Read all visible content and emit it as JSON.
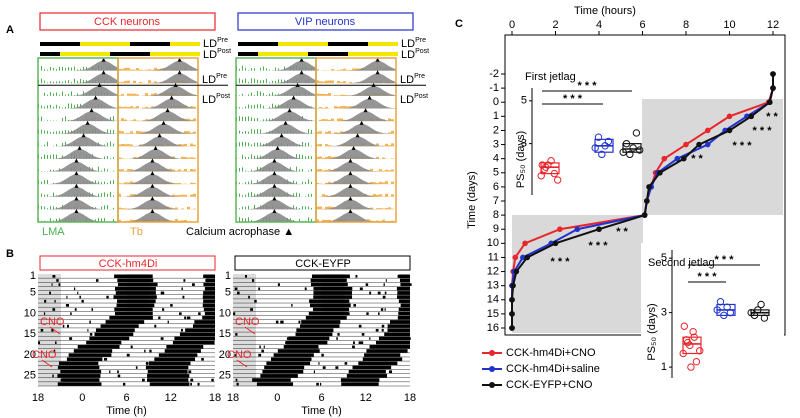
{
  "panel_a": {
    "label": "A",
    "groups": [
      "CCK neurons",
      "VIP neurons"
    ],
    "ld_labels": [
      {
        "text": "LD",
        "sup": "Pre"
      },
      {
        "text": "LD",
        "sup": "Post"
      }
    ],
    "traces": [
      "LMA",
      "Tb"
    ],
    "marker_label": "Calcium acrophase ▲"
  },
  "panel_b": {
    "label": "B",
    "titles": [
      "CCK-hm4Di",
      "CCK-EYFP"
    ],
    "y_ticks": [
      "1",
      "5",
      "10",
      "15",
      "20",
      "25"
    ],
    "x_ticks": [
      "18",
      "0",
      "6",
      "12",
      "18"
    ],
    "x_label": "Time (h)",
    "annotation": "CNO"
  },
  "chart_data": [
    {
      "type": "line",
      "label": "C",
      "x_label": "Time (hours)",
      "y_label": "Time (days)",
      "days": [
        -2,
        -1,
        0,
        1,
        2,
        3,
        4,
        5,
        6,
        7,
        8,
        9,
        10,
        11,
        12,
        13,
        14,
        15,
        16
      ],
      "series": [
        {
          "name": "CCK-hm4Di+CNO",
          "color": "#e8262b",
          "values": [
            12,
            12,
            11.8,
            10.0,
            9.0,
            8.0,
            7.0,
            6.6,
            6.4,
            6.2,
            6.1,
            2.2,
            0.6,
            0.15,
            0.05,
            0,
            0,
            0,
            0
          ]
        },
        {
          "name": "CCK-hm4Di+saline",
          "color": "#2233cc",
          "values": [
            12,
            12,
            11.85,
            10.8,
            9.8,
            9.0,
            7.6,
            6.7,
            6.4,
            6.2,
            6.1,
            3.0,
            1.8,
            0.5,
            0.1,
            0,
            0,
            0,
            0
          ]
        },
        {
          "name": "CCK-EYFP+CNO",
          "color": "#111111",
          "values": [
            12,
            12,
            11.85,
            11.0,
            10.0,
            8.6,
            7.9,
            6.8,
            6.3,
            6.2,
            6.1,
            4.0,
            2.0,
            0.7,
            0.2,
            0.05,
            0,
            0,
            0
          ]
        }
      ],
      "xlim": [
        0,
        12
      ],
      "xticks": [
        0,
        2,
        4,
        6,
        8,
        10,
        12
      ],
      "ylim": [
        -2,
        16
      ],
      "yticks": [
        -2,
        -1,
        0,
        1,
        2,
        3,
        4,
        5,
        6,
        7,
        8,
        9,
        10,
        11,
        12,
        13,
        14,
        15,
        16
      ],
      "y_inverted": true,
      "legend": "lower left",
      "annotations": [
        "* *",
        "* * *",
        "* * *",
        "* *",
        "* *",
        "* * *",
        "* * *"
      ]
    },
    {
      "type": "box",
      "title": "First jetlag",
      "y_label": "PS₅₀ (days)",
      "ylim": [
        0.6,
        5.6
      ],
      "yticks": [
        3,
        5
      ],
      "groups": [
        {
          "color": "#e8262b",
          "points": [
            1.5,
            1.8,
            2.0,
            2.2,
            1.6,
            1.3,
            2.0,
            1.9
          ],
          "box": [
            1.6,
            1.9,
            2.1
          ]
        },
        {
          "color": "#2233cc",
          "points": [
            2.8,
            3.3,
            2.5,
            2.9,
            3.1
          ],
          "box": [
            2.6,
            2.9,
            3.2
          ]
        },
        {
          "color": "#111111",
          "points": [
            2.6,
            3.0,
            2.5,
            2.8,
            3.5,
            2.7
          ],
          "box": [
            2.6,
            2.75,
            3.0
          ]
        }
      ],
      "annotations": [
        "* * *",
        "* * *"
      ]
    },
    {
      "type": "box",
      "title": "Second jetlag",
      "y_label": "PS₅₀ (days)",
      "ylim": [
        0.6,
        5.3
      ],
      "yticks": [
        1,
        3,
        5
      ],
      "groups": [
        {
          "color": "#e8262b",
          "points": [
            1.5,
            2.0,
            1.8,
            2.3,
            1.2,
            1.6,
            2.5,
            1.9,
            1.0,
            2.1
          ],
          "box": [
            1.5,
            1.85,
            2.1
          ]
        },
        {
          "color": "#2233cc",
          "points": [
            3.1,
            3.4,
            2.9,
            3.2,
            3.0
          ],
          "box": [
            2.9,
            3.1,
            3.3
          ]
        },
        {
          "color": "#111111",
          "points": [
            3.0,
            2.9,
            3.1,
            3.3,
            2.8
          ],
          "box": [
            2.9,
            3.0,
            3.1
          ]
        }
      ],
      "annotations": [
        "* * *",
        "* * *"
      ]
    }
  ]
}
